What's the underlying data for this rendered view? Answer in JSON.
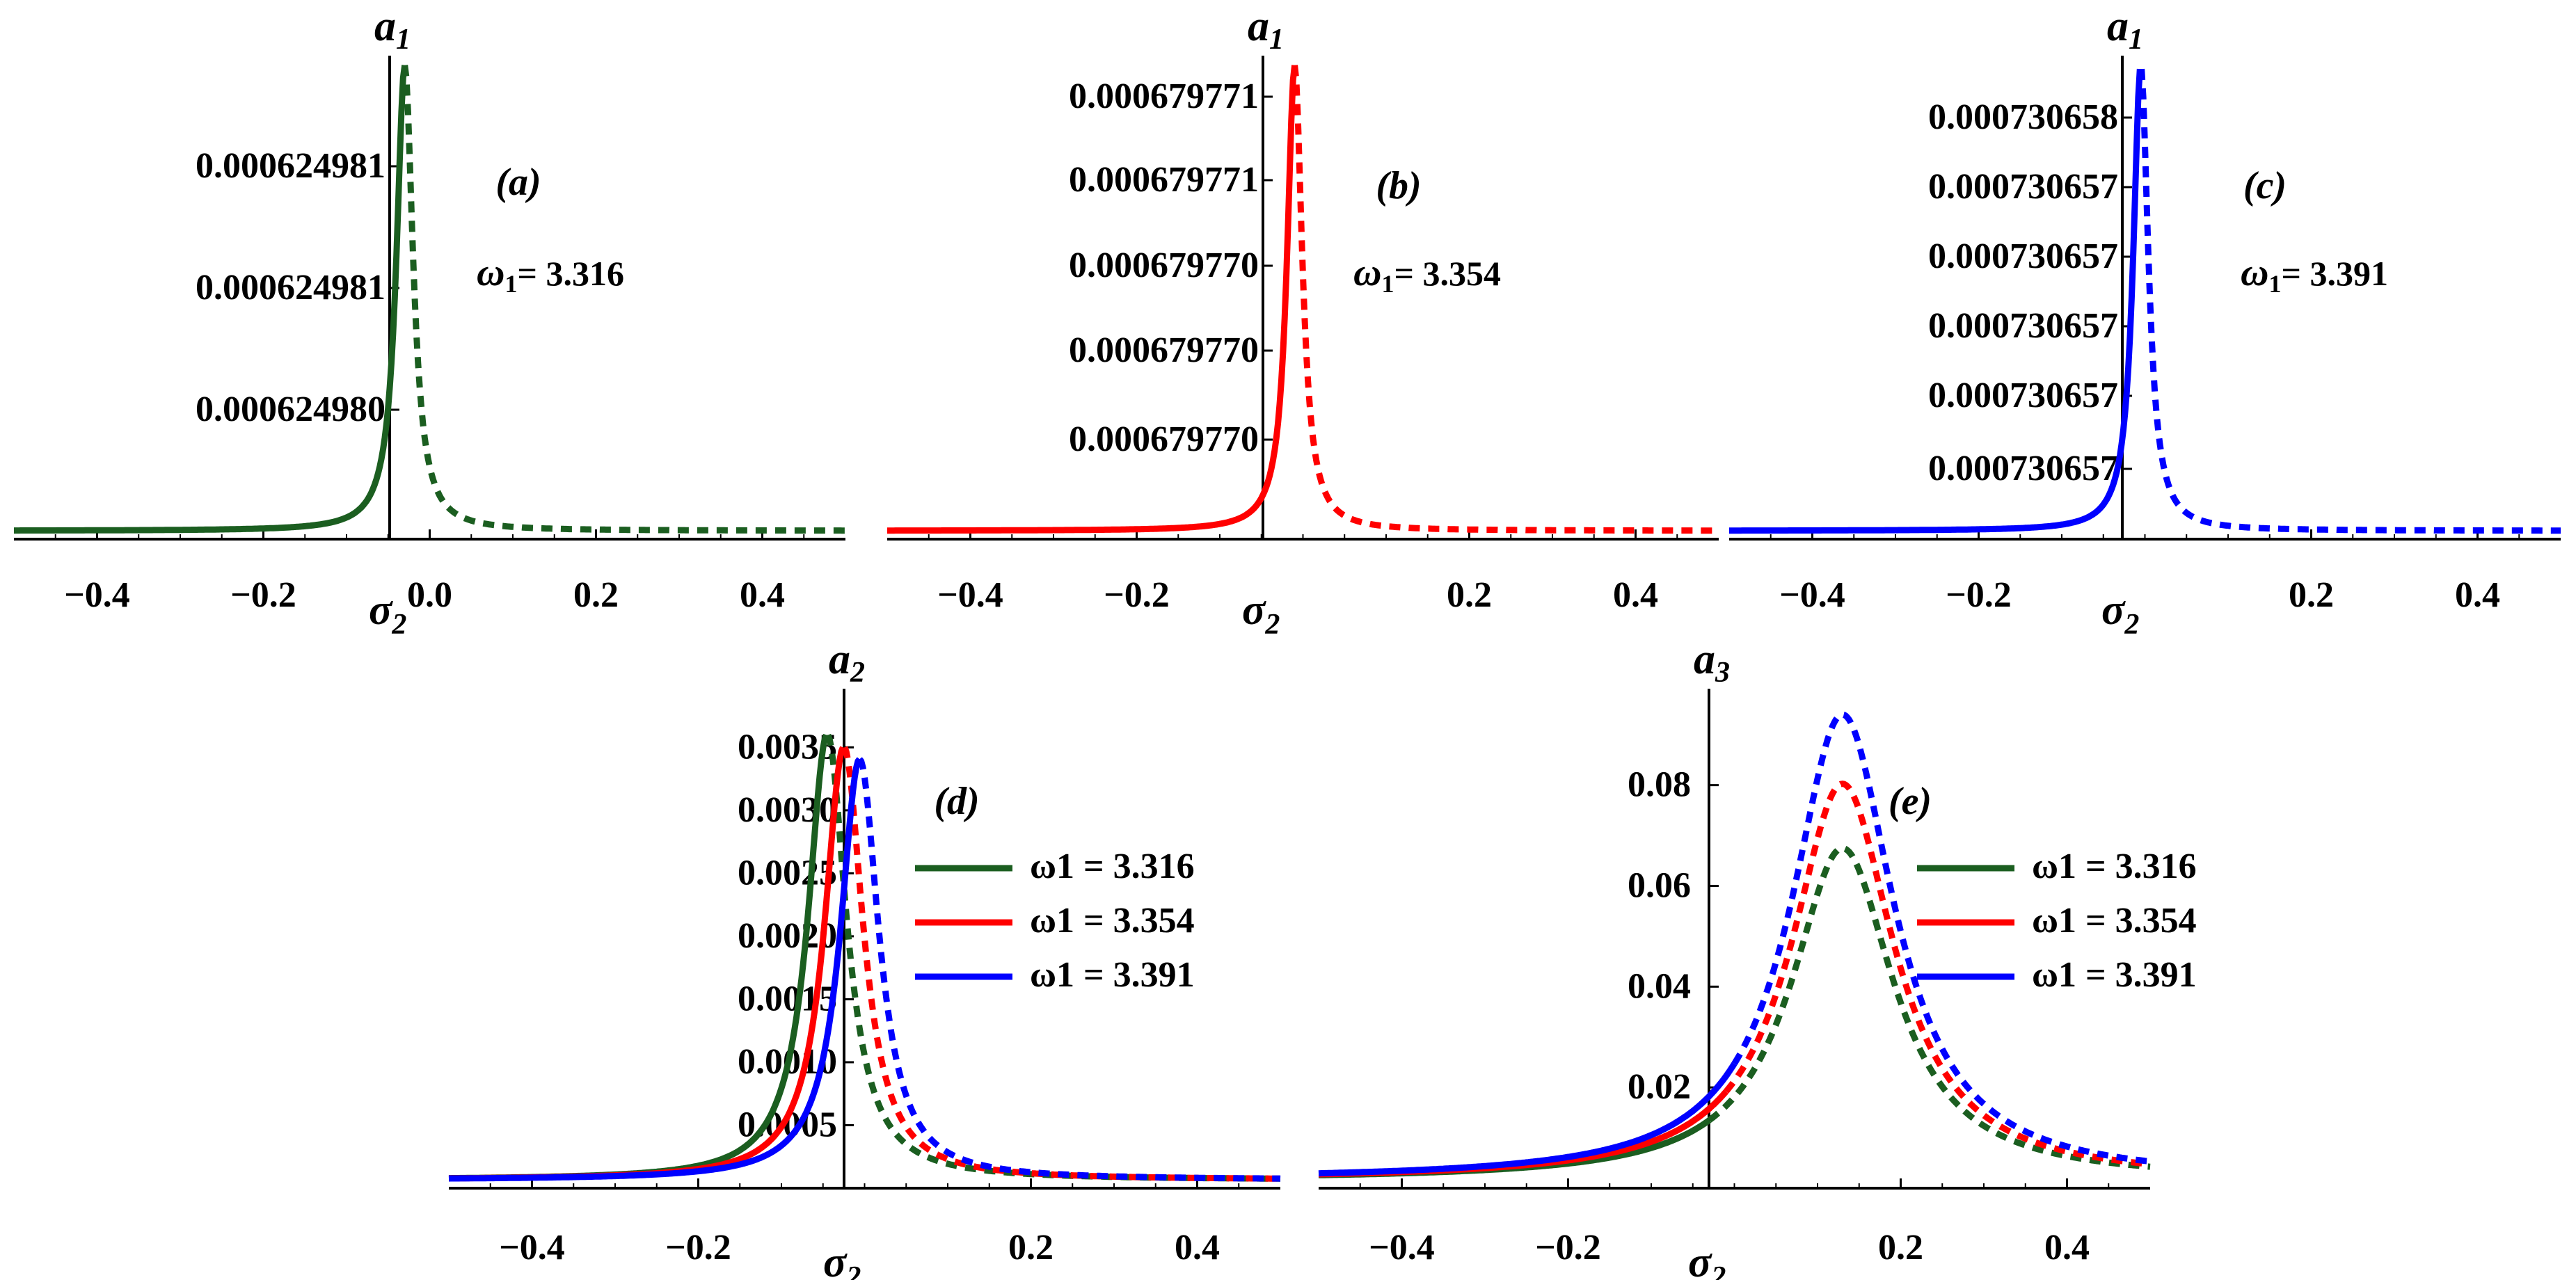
{
  "chart_data": [
    {
      "id": "a",
      "type": "line",
      "tag": "(a)",
      "x_name": "σ",
      "x_sub": "2",
      "y_name": "a",
      "y_sub": "1",
      "xlim": [
        -0.5,
        0.5
      ],
      "x_ticks": [
        -0.4,
        -0.2,
        0.0,
        0.2,
        0.4
      ],
      "x_tick_labels": [
        "−0.4",
        "−0.2",
        "0.0",
        "0.2",
        "0.4"
      ],
      "y_tick_labels": [
        "0.000624981",
        "0.000624981",
        "0.000624980"
      ],
      "annotation": {
        "symbol": "ω",
        "sub": "1",
        "text": "= 3.316"
      },
      "series": [
        {
          "name": "ω1 = 3.316",
          "color": "#1b5e20",
          "f": 1.0,
          "peak": -0.03,
          "amp": 1.0,
          "hw": 0.012
        }
      ]
    },
    {
      "id": "b",
      "type": "line",
      "tag": "(b)",
      "x_name": "σ",
      "x_sub": "2",
      "y_name": "a",
      "y_sub": "1",
      "xlim": [
        -0.5,
        0.5
      ],
      "x_ticks": [
        -0.4,
        -0.2,
        0.2,
        0.4
      ],
      "x_tick_labels": [
        "−0.4",
        "−0.2",
        "0.2",
        "0.4"
      ],
      "y_tick_labels": [
        "0.000679771",
        "0.000679771",
        "0.000679770",
        "0.000679770",
        "0.000679770"
      ],
      "annotation": {
        "symbol": "ω",
        "sub": "1",
        "text": "= 3.354"
      },
      "series": [
        {
          "name": "ω1 = 3.354",
          "color": "#ff0000",
          "f": 1.0,
          "peak": -0.01,
          "amp": 1.0,
          "hw": 0.011
        }
      ]
    },
    {
      "id": "c",
      "type": "line",
      "tag": "(c)",
      "x_name": "σ",
      "x_sub": "2",
      "y_name": "a",
      "y_sub": "1",
      "xlim": [
        -0.5,
        0.5
      ],
      "x_ticks": [
        -0.4,
        -0.2,
        0.2,
        0.4
      ],
      "x_tick_labels": [
        "−0.4",
        "−0.2",
        "0.2",
        "0.4"
      ],
      "y_tick_labels": [
        "0.000730658",
        "0.000730657",
        "0.000730657",
        "0.000730657",
        "0.000730657",
        "0.000730657"
      ],
      "annotation": {
        "symbol": "ω",
        "sub": "1",
        "text": "= 3.391"
      },
      "series": [
        {
          "name": "ω1 = 3.391",
          "color": "#0000ff",
          "f": 1.0,
          "peak": -0.005,
          "amp": 1.0,
          "hw": 0.011
        }
      ]
    },
    {
      "id": "d",
      "type": "line",
      "tag": "(d)",
      "x_name": "σ",
      "x_sub": "2",
      "y_name": "a",
      "y_sub": "2",
      "xlim": [
        -0.5,
        0.5
      ],
      "ylim": [
        0,
        0.0038
      ],
      "x_ticks": [
        -0.4,
        -0.2,
        0.2,
        0.4
      ],
      "x_tick_labels": [
        "−0.4",
        "−0.2",
        "0.2",
        "0.4"
      ],
      "y_ticks": [
        0.0005,
        0.001,
        0.0015,
        0.002,
        0.0025,
        0.003,
        0.0035
      ],
      "y_tick_labels": [
        "0.0005",
        "0.0010",
        "0.0015",
        "0.0020",
        "0.0025",
        "0.0030",
        "0.0035"
      ],
      "legend": [
        "ω1 = 3.316",
        "ω1 = 3.354",
        "ω1 = 3.391"
      ],
      "series": [
        {
          "name": "ω1 = 3.316",
          "color": "#1b5e20",
          "f": 1.0,
          "peak": -0.045,
          "amp": 0.0036,
          "hw": 0.028,
          "stable_end": -0.045
        },
        {
          "name": "ω1 = 3.354",
          "color": "#ff0000",
          "f": 1.0,
          "peak": -0.025,
          "amp": 0.0035,
          "hw": 0.028,
          "stable_end": -0.025
        },
        {
          "name": "ω1 = 3.391",
          "color": "#0000ff",
          "f": 1.0,
          "peak": -0.006,
          "amp": 0.0034,
          "hw": 0.028,
          "stable_end": -0.006
        }
      ]
    },
    {
      "id": "e",
      "type": "line",
      "tag": "(e)",
      "x_name": "σ",
      "x_sub": "2",
      "y_name": "a",
      "y_sub": "3",
      "xlim": [
        -0.5,
        0.5
      ],
      "ylim": [
        0,
        0.095
      ],
      "x_ticks": [
        -0.4,
        -0.2,
        0.2,
        0.4
      ],
      "x_tick_labels": [
        "−0.4",
        "−0.2",
        "0.2",
        "0.4"
      ],
      "y_ticks": [
        0.02,
        0.04,
        0.06,
        0.08
      ],
      "y_tick_labels": [
        "0.02",
        "0.04",
        "0.06",
        "0.08"
      ],
      "legend": [
        "ω1 = 3.316",
        "ω1 = 3.354",
        "ω1 = 3.391"
      ],
      "series": [
        {
          "name": "ω1 = 3.316",
          "color": "#1b5e20",
          "peak": 0.13,
          "amp": 0.067,
          "hw": 0.075,
          "stable_end": -0.03
        },
        {
          "name": "ω1 = 3.354",
          "color": "#ff0000",
          "peak": 0.13,
          "amp": 0.08,
          "hw": 0.075,
          "stable_end": -0.01
        },
        {
          "name": "ω1 = 3.391",
          "color": "#0000ff",
          "peak": 0.13,
          "amp": 0.094,
          "hw": 0.075,
          "stable_end": 0.0
        }
      ]
    }
  ]
}
